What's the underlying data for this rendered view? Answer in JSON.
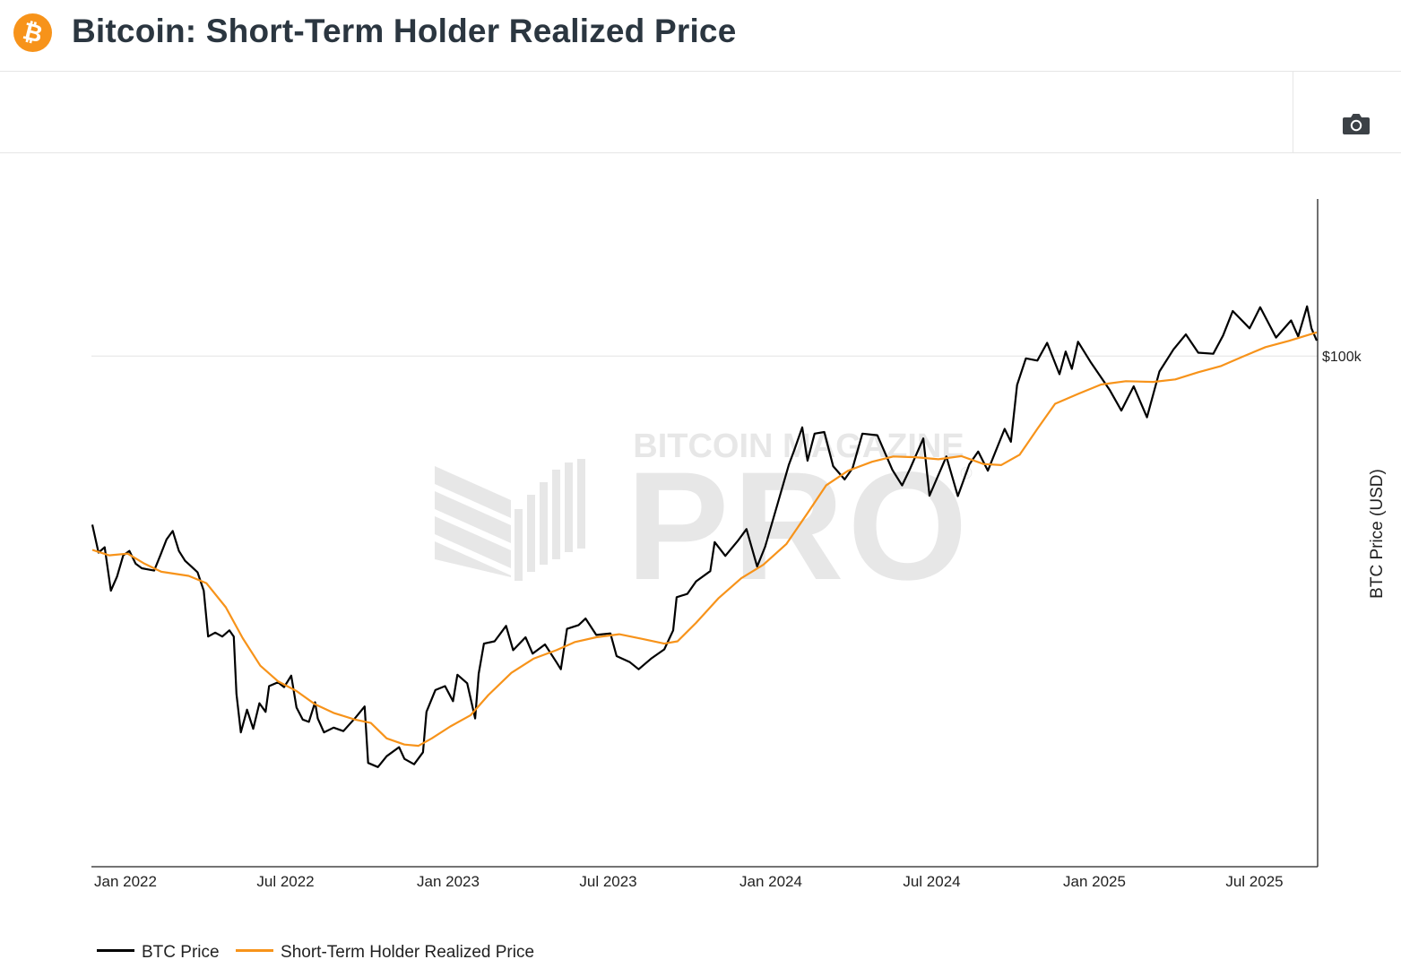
{
  "header": {
    "title": "Bitcoin: Short-Term Holder Realized Price",
    "logo_icon": "bitcoin-logo-icon",
    "logo_color": "#f7931a"
  },
  "toolbar": {
    "camera_icon": "camera-icon"
  },
  "watermark": {
    "line1": "BITCOIN MAGAZINE",
    "line2": "PRO",
    "registered": "®"
  },
  "chart_data": {
    "type": "line",
    "title": "",
    "xlabel": "",
    "ylabel": "BTC Price (USD)",
    "yscale": "log",
    "y_tick_labels": [
      "$100k"
    ],
    "y_ticks": [
      100000
    ],
    "x_tick_labels": [
      "Jan 2022",
      "Jul 2022",
      "Jan 2023",
      "Jul 2023",
      "Jan 2024",
      "Jul 2024",
      "Jan 2025",
      "Jul 2025"
    ],
    "x_ticks": [
      "2022-01-01",
      "2022-07-01",
      "2023-01-01",
      "2023-07-01",
      "2024-01-01",
      "2024-07-01",
      "2025-01-01",
      "2025-07-01"
    ],
    "x_range": [
      "2021-12-31",
      "2025-10-18"
    ],
    "y_range": [
      10500,
      200000
    ],
    "grid": true,
    "legend_position": "bottom-left",
    "series": [
      {
        "name": "BTC Price",
        "color": "#000000",
        "points": [
          [
            "2022-01-01",
            47500
          ],
          [
            "2022-01-08",
            42000
          ],
          [
            "2022-01-15",
            43000
          ],
          [
            "2022-01-22",
            35500
          ],
          [
            "2022-01-29",
            37800
          ],
          [
            "2022-02-05",
            41500
          ],
          [
            "2022-02-12",
            42300
          ],
          [
            "2022-02-19",
            40000
          ],
          [
            "2022-02-26",
            39200
          ],
          [
            "2022-03-05",
            39000
          ],
          [
            "2022-03-12",
            38800
          ],
          [
            "2022-03-19",
            41500
          ],
          [
            "2022-03-26",
            44500
          ],
          [
            "2022-04-02",
            46200
          ],
          [
            "2022-04-09",
            42300
          ],
          [
            "2022-04-16",
            40500
          ],
          [
            "2022-04-23",
            39500
          ],
          [
            "2022-04-30",
            38500
          ],
          [
            "2022-05-07",
            35500
          ],
          [
            "2022-05-12",
            29000
          ],
          [
            "2022-05-20",
            29500
          ],
          [
            "2022-05-28",
            29000
          ],
          [
            "2022-06-05",
            29800
          ],
          [
            "2022-06-10",
            29000
          ],
          [
            "2022-06-13",
            22500
          ],
          [
            "2022-06-18",
            19000
          ],
          [
            "2022-06-25",
            21000
          ],
          [
            "2022-07-02",
            19300
          ],
          [
            "2022-07-09",
            21600
          ],
          [
            "2022-07-16",
            20800
          ],
          [
            "2022-07-20",
            23300
          ],
          [
            "2022-07-30",
            23700
          ],
          [
            "2022-08-06",
            23200
          ],
          [
            "2022-08-14",
            24400
          ],
          [
            "2022-08-20",
            21200
          ],
          [
            "2022-08-27",
            20100
          ],
          [
            "2022-09-03",
            19900
          ],
          [
            "2022-09-10",
            21700
          ],
          [
            "2022-09-13",
            20200
          ],
          [
            "2022-09-20",
            19000
          ],
          [
            "2022-10-01",
            19400
          ],
          [
            "2022-10-12",
            19100
          ],
          [
            "2022-10-26",
            20300
          ],
          [
            "2022-11-05",
            21300
          ],
          [
            "2022-11-09",
            16600
          ],
          [
            "2022-11-20",
            16300
          ],
          [
            "2022-11-30",
            17100
          ],
          [
            "2022-12-14",
            17800
          ],
          [
            "2022-12-20",
            16900
          ],
          [
            "2022-12-31",
            16500
          ],
          [
            "2023-01-10",
            17400
          ],
          [
            "2023-01-14",
            20800
          ],
          [
            "2023-01-24",
            22900
          ],
          [
            "2023-02-04",
            23300
          ],
          [
            "2023-02-13",
            21800
          ],
          [
            "2023-02-18",
            24500
          ],
          [
            "2023-03-01",
            23600
          ],
          [
            "2023-03-10",
            20200
          ],
          [
            "2023-03-14",
            24600
          ],
          [
            "2023-03-20",
            28100
          ],
          [
            "2023-04-01",
            28400
          ],
          [
            "2023-04-14",
            30400
          ],
          [
            "2023-04-22",
            27300
          ],
          [
            "2023-05-06",
            28900
          ],
          [
            "2023-05-14",
            26900
          ],
          [
            "2023-05-28",
            28000
          ],
          [
            "2023-06-10",
            25900
          ],
          [
            "2023-06-15",
            25100
          ],
          [
            "2023-06-22",
            30000
          ],
          [
            "2023-07-05",
            30500
          ],
          [
            "2023-07-13",
            31400
          ],
          [
            "2023-07-25",
            29200
          ],
          [
            "2023-08-10",
            29400
          ],
          [
            "2023-08-17",
            26600
          ],
          [
            "2023-09-01",
            25900
          ],
          [
            "2023-09-11",
            25100
          ],
          [
            "2023-09-25",
            26300
          ],
          [
            "2023-10-10",
            27400
          ],
          [
            "2023-10-20",
            29800
          ],
          [
            "2023-10-24",
            34500
          ],
          [
            "2023-11-05",
            35000
          ],
          [
            "2023-11-15",
            37000
          ],
          [
            "2023-12-01",
            38700
          ],
          [
            "2023-12-06",
            44000
          ],
          [
            "2023-12-18",
            41400
          ],
          [
            "2024-01-01",
            44200
          ],
          [
            "2024-01-11",
            46600
          ],
          [
            "2024-01-23",
            39500
          ],
          [
            "2024-02-01",
            43100
          ],
          [
            "2024-02-15",
            52000
          ],
          [
            "2024-02-28",
            62000
          ],
          [
            "2024-03-05",
            66000
          ],
          [
            "2024-03-14",
            73000
          ],
          [
            "2024-03-20",
            63000
          ],
          [
            "2024-03-28",
            71000
          ],
          [
            "2024-04-08",
            71500
          ],
          [
            "2024-04-18",
            61500
          ],
          [
            "2024-05-01",
            58000
          ],
          [
            "2024-05-10",
            61000
          ],
          [
            "2024-05-21",
            71000
          ],
          [
            "2024-06-07",
            70500
          ],
          [
            "2024-06-24",
            60500
          ],
          [
            "2024-07-05",
            56500
          ],
          [
            "2024-07-14",
            60800
          ],
          [
            "2024-07-29",
            69500
          ],
          [
            "2024-08-05",
            54000
          ],
          [
            "2024-08-24",
            64200
          ],
          [
            "2024-09-06",
            53900
          ],
          [
            "2024-09-19",
            62000
          ],
          [
            "2024-09-29",
            65600
          ],
          [
            "2024-10-10",
            60300
          ],
          [
            "2024-10-29",
            72500
          ],
          [
            "2024-11-05",
            68500
          ],
          [
            "2024-11-12",
            88000
          ],
          [
            "2024-11-22",
            99000
          ],
          [
            "2024-12-05",
            98000
          ],
          [
            "2024-12-16",
            106000
          ],
          [
            "2024-12-30",
            92300
          ],
          [
            "2025-01-06",
            102000
          ],
          [
            "2025-01-13",
            94500
          ],
          [
            "2025-01-20",
            106500
          ],
          [
            "2025-02-03",
            97500
          ],
          [
            "2025-02-25",
            86000
          ],
          [
            "2025-03-10",
            78600
          ],
          [
            "2025-03-24",
            87500
          ],
          [
            "2025-04-08",
            76300
          ],
          [
            "2025-04-22",
            93400
          ],
          [
            "2025-05-08",
            103000
          ],
          [
            "2025-05-22",
            110000
          ],
          [
            "2025-06-05",
            101500
          ],
          [
            "2025-06-22",
            101000
          ],
          [
            "2025-07-03",
            109500
          ],
          [
            "2025-07-14",
            122000
          ],
          [
            "2025-08-02",
            113000
          ],
          [
            "2025-08-14",
            124000
          ],
          [
            "2025-09-01",
            108500
          ],
          [
            "2025-09-18",
            117000
          ],
          [
            "2025-09-26",
            109000
          ],
          [
            "2025-10-06",
            124500
          ],
          [
            "2025-10-11",
            113000
          ],
          [
            "2025-10-17",
            107000
          ]
        ]
      },
      {
        "name": "Short-Term Holder Realized Price",
        "color": "#f7931a",
        "points": [
          [
            "2022-01-01",
            42500
          ],
          [
            "2022-01-20",
            41500
          ],
          [
            "2022-02-10",
            41800
          ],
          [
            "2022-03-01",
            40000
          ],
          [
            "2022-03-20",
            38600
          ],
          [
            "2022-04-20",
            37900
          ],
          [
            "2022-05-10",
            36700
          ],
          [
            "2022-06-01",
            33000
          ],
          [
            "2022-06-20",
            28800
          ],
          [
            "2022-07-10",
            25500
          ],
          [
            "2022-07-30",
            23800
          ],
          [
            "2022-08-20",
            22800
          ],
          [
            "2022-09-10",
            21500
          ],
          [
            "2022-10-01",
            20700
          ],
          [
            "2022-10-25",
            20100
          ],
          [
            "2022-11-12",
            19800
          ],
          [
            "2022-11-30",
            18500
          ],
          [
            "2022-12-20",
            18000
          ],
          [
            "2023-01-05",
            17900
          ],
          [
            "2023-01-20",
            18500
          ],
          [
            "2023-02-10",
            19500
          ],
          [
            "2023-03-05",
            20500
          ],
          [
            "2023-03-25",
            22400
          ],
          [
            "2023-04-20",
            24700
          ],
          [
            "2023-05-15",
            26300
          ],
          [
            "2023-06-10",
            27300
          ],
          [
            "2023-07-01",
            28300
          ],
          [
            "2023-07-25",
            28900
          ],
          [
            "2023-08-20",
            29300
          ],
          [
            "2023-09-15",
            28700
          ],
          [
            "2023-10-10",
            28100
          ],
          [
            "2023-10-25",
            28400
          ],
          [
            "2023-11-15",
            30800
          ],
          [
            "2023-12-10",
            34300
          ],
          [
            "2024-01-05",
            37500
          ],
          [
            "2024-01-30",
            39800
          ],
          [
            "2024-02-25",
            43600
          ],
          [
            "2024-03-20",
            50000
          ],
          [
            "2024-04-10",
            56500
          ],
          [
            "2024-05-05",
            60300
          ],
          [
            "2024-06-01",
            62700
          ],
          [
            "2024-06-25",
            64200
          ],
          [
            "2024-07-20",
            64000
          ],
          [
            "2024-08-15",
            63400
          ],
          [
            "2024-09-10",
            64300
          ],
          [
            "2024-10-05",
            62100
          ],
          [
            "2024-10-25",
            61800
          ],
          [
            "2024-11-15",
            64700
          ],
          [
            "2024-12-05",
            72500
          ],
          [
            "2024-12-25",
            81000
          ],
          [
            "2025-01-20",
            84600
          ],
          [
            "2025-02-15",
            88200
          ],
          [
            "2025-03-15",
            89500
          ],
          [
            "2025-04-15",
            89200
          ],
          [
            "2025-05-10",
            90200
          ],
          [
            "2025-06-05",
            93100
          ],
          [
            "2025-07-01",
            95700
          ],
          [
            "2025-07-25",
            99700
          ],
          [
            "2025-08-20",
            104000
          ],
          [
            "2025-09-15",
            106900
          ],
          [
            "2025-10-17",
            111000
          ]
        ]
      }
    ]
  },
  "legend": {
    "items": [
      {
        "label": "BTC Price",
        "color": "#000000"
      },
      {
        "label": "Short-Term Holder Realized Price",
        "color": "#f7931a"
      }
    ]
  }
}
